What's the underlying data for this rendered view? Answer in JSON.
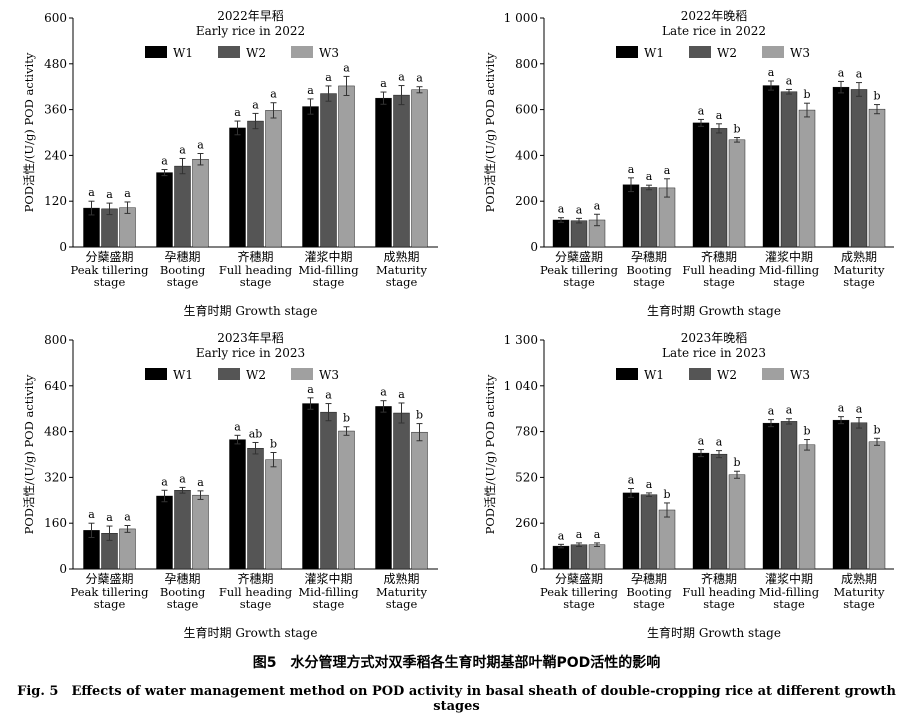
{
  "figure": {
    "caption_zh": "图5　水分管理方式对双季稻各生育时期基部叶鞘POD活性的影响",
    "caption_en": "Fig. 5　Effects of water management method on POD activity in basal sheath of double-cropping rice at different growth stages"
  },
  "colors": {
    "W1": "#000000",
    "W2": "#555555",
    "W3": "#a0a0a0"
  },
  "chart_data": [
    {
      "type": "bar",
      "title_zh": "2022年早稻",
      "title_en": "Early rice in 2022",
      "ylabel": "POD活性/(U/g) POD activity",
      "xlabel": "生育时期 Growth stage",
      "categories_zh": [
        "分蘖盛期",
        "孕穗期",
        "齐穗期",
        "灌浆中期",
        "成熟期"
      ],
      "categories_en": [
        [
          "Peak tillering",
          "stage"
        ],
        [
          "Booting",
          "stage"
        ],
        [
          "Full heading",
          "stage"
        ],
        [
          "Mid-filling",
          "stage"
        ],
        [
          "Maturity",
          "stage"
        ]
      ],
      "yticks": [
        "0",
        "120",
        "240",
        "360",
        "480",
        "600"
      ],
      "ylim": [
        0,
        600
      ],
      "legend_position": "top",
      "series": [
        {
          "name": "W1",
          "values": [
            102,
            195,
            312,
            368,
            390
          ],
          "errors": [
            18,
            8,
            18,
            20,
            16
          ],
          "letters": [
            "a",
            "a",
            "a",
            "a",
            "a"
          ]
        },
        {
          "name": "W2",
          "values": [
            100,
            212,
            330,
            402,
            398
          ],
          "errors": [
            15,
            20,
            20,
            20,
            25
          ],
          "letters": [
            "a",
            "a",
            "a",
            "a",
            "a"
          ]
        },
        {
          "name": "W3",
          "values": [
            103,
            230,
            358,
            422,
            412
          ],
          "errors": [
            15,
            15,
            20,
            25,
            8
          ],
          "letters": [
            "a",
            "a",
            "a",
            "a",
            "a"
          ]
        }
      ]
    },
    {
      "type": "bar",
      "title_zh": "2022年晚稻",
      "title_en": "Late rice in 2022",
      "ylabel": "POD活性/(U/g) POD activity",
      "xlabel": "生育时期 Growth stage",
      "categories_zh": [
        "分蘖盛期",
        "孕穗期",
        "齐穗期",
        "灌浆中期",
        "成熟期"
      ],
      "categories_en": [
        [
          "Peak tillering",
          "stage"
        ],
        [
          "Booting",
          "stage"
        ],
        [
          "Full heading",
          "stage"
        ],
        [
          "Mid-filling",
          "stage"
        ],
        [
          "Maturity",
          "stage"
        ]
      ],
      "yticks": [
        "0",
        "200",
        "400",
        "600",
        "800",
        "1 000"
      ],
      "ylim": [
        0,
        1000
      ],
      "legend_position": "top",
      "series": [
        {
          "name": "W1",
          "values": [
            118,
            272,
            542,
            705,
            698
          ],
          "errors": [
            10,
            30,
            15,
            20,
            25
          ],
          "letters": [
            "a",
            "a",
            "a",
            "a",
            "a"
          ]
        },
        {
          "name": "W2",
          "values": [
            115,
            260,
            518,
            678,
            688
          ],
          "errors": [
            10,
            10,
            20,
            10,
            30
          ],
          "letters": [
            "a",
            "a",
            "a",
            "a",
            "a"
          ]
        },
        {
          "name": "W3",
          "values": [
            118,
            258,
            468,
            598,
            602
          ],
          "errors": [
            25,
            40,
            10,
            30,
            20
          ],
          "letters": [
            "a",
            "a",
            "b",
            "b",
            "b"
          ]
        }
      ]
    },
    {
      "type": "bar",
      "title_zh": "2023年早稻",
      "title_en": "Early rice in 2023",
      "ylabel": "POD活性/(U/g) POD activity",
      "xlabel": "生育时期 Growth stage",
      "categories_zh": [
        "分蘖盛期",
        "孕穗期",
        "齐穗期",
        "灌浆中期",
        "成熟期"
      ],
      "categories_en": [
        [
          "Peak tillering",
          "stage"
        ],
        [
          "Booting",
          "stage"
        ],
        [
          "Full heading",
          "stage"
        ],
        [
          "Mid-filling",
          "stage"
        ],
        [
          "Maturity",
          "stage"
        ]
      ],
      "yticks": [
        "0",
        "160",
        "320",
        "480",
        "640",
        "800"
      ],
      "ylim": [
        0,
        800
      ],
      "legend_position": "top",
      "series": [
        {
          "name": "W1",
          "values": [
            135,
            255,
            452,
            578,
            568
          ],
          "errors": [
            25,
            20,
            15,
            20,
            20
          ],
          "letters": [
            "a",
            "a",
            "a",
            "a",
            "a"
          ]
        },
        {
          "name": "W2",
          "values": [
            125,
            275,
            422,
            548,
            545
          ],
          "errors": [
            25,
            10,
            20,
            30,
            35
          ],
          "letters": [
            "a",
            "a",
            "ab",
            "a",
            "a"
          ]
        },
        {
          "name": "W3",
          "values": [
            140,
            258,
            382,
            482,
            478
          ],
          "errors": [
            12,
            15,
            25,
            15,
            30
          ],
          "letters": [
            "a",
            "a",
            "b",
            "b",
            "b"
          ]
        }
      ]
    },
    {
      "type": "bar",
      "title_zh": "2023年晚稻",
      "title_en": "Late rice in 2023",
      "ylabel": "POD活性/(U/g) POD activity",
      "xlabel": "生育时期 Growth stage",
      "categories_zh": [
        "分蘖盛期",
        "孕穗期",
        "齐穗期",
        "灌浆中期",
        "成熟期"
      ],
      "categories_en": [
        [
          "Peak tillering",
          "stage"
        ],
        [
          "Booting",
          "stage"
        ],
        [
          "Full heading",
          "stage"
        ],
        [
          "Mid-filling",
          "stage"
        ],
        [
          "Maturity",
          "stage"
        ]
      ],
      "yticks": [
        "0",
        "260",
        "520",
        "780",
        "1 040",
        "1 300"
      ],
      "ylim": [
        0,
        1300
      ],
      "legend_position": "top",
      "series": [
        {
          "name": "W1",
          "values": [
            130,
            432,
            658,
            828,
            845
          ],
          "errors": [
            10,
            25,
            20,
            20,
            20
          ],
          "letters": [
            "a",
            "a",
            "a",
            "a",
            "a"
          ]
        },
        {
          "name": "W2",
          "values": [
            138,
            422,
            652,
            838,
            830
          ],
          "errors": [
            10,
            10,
            20,
            15,
            30
          ],
          "letters": [
            "a",
            "a",
            "a",
            "a",
            "a"
          ]
        },
        {
          "name": "W3",
          "values": [
            138,
            335,
            535,
            705,
            722
          ],
          "errors": [
            10,
            40,
            20,
            30,
            20
          ],
          "letters": [
            "a",
            "b",
            "b",
            "b",
            "b"
          ]
        }
      ]
    }
  ]
}
